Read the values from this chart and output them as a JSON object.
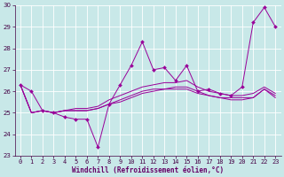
{
  "xlabel": "Windchill (Refroidissement éolien,°C)",
  "x": [
    0,
    1,
    2,
    3,
    4,
    5,
    6,
    7,
    8,
    9,
    10,
    11,
    12,
    13,
    14,
    15,
    16,
    17,
    18,
    19,
    20,
    21,
    22,
    23
  ],
  "series1": [
    26.3,
    26.0,
    25.1,
    25.0,
    24.8,
    24.7,
    24.7,
    23.4,
    25.4,
    26.3,
    27.2,
    28.3,
    27.0,
    27.1,
    26.5,
    27.2,
    26.0,
    26.1,
    25.9,
    25.8,
    26.2,
    29.2,
    29.9,
    29.0
  ],
  "series2": [
    26.3,
    25.0,
    25.1,
    25.0,
    25.1,
    25.2,
    25.2,
    25.3,
    25.6,
    25.8,
    26.0,
    26.2,
    26.3,
    26.4,
    26.4,
    26.5,
    26.2,
    26.0,
    25.9,
    25.8,
    25.8,
    25.9,
    26.2,
    25.9
  ],
  "series3": [
    26.3,
    25.0,
    25.1,
    25.0,
    25.1,
    25.1,
    25.1,
    25.2,
    25.4,
    25.6,
    25.8,
    26.0,
    26.1,
    26.1,
    26.2,
    26.2,
    26.0,
    25.8,
    25.7,
    25.7,
    25.7,
    25.7,
    26.1,
    25.8
  ],
  "series4": [
    26.3,
    25.0,
    25.1,
    25.0,
    25.1,
    25.1,
    25.1,
    25.2,
    25.4,
    25.5,
    25.7,
    25.9,
    26.0,
    26.1,
    26.1,
    26.1,
    25.9,
    25.8,
    25.7,
    25.6,
    25.6,
    25.7,
    26.1,
    25.7
  ],
  "line_color": "#990099",
  "bg_color": "#c8e8e8",
  "grid_color": "#b0d0d0",
  "ylim": [
    23,
    30
  ],
  "yticks": [
    23,
    24,
    25,
    26,
    27,
    28,
    29,
    30
  ],
  "tick_fontsize": 5.0,
  "xlabel_fontsize": 5.5
}
